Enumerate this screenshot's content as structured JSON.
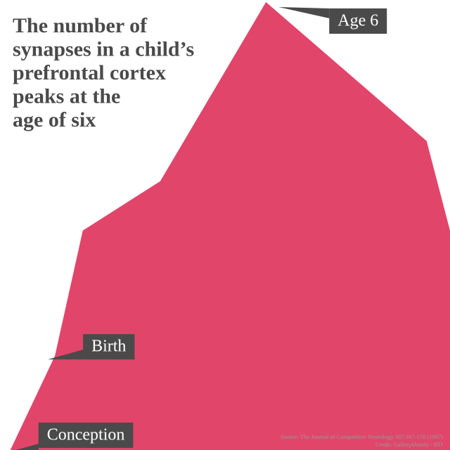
{
  "chart_data": {
    "type": "area",
    "title": [
      "The number of",
      "synapses in a child’s",
      "prefrontal cortex",
      "peaks at the",
      "age of six"
    ],
    "x": [
      2.3,
      12.2,
      18.4,
      35.6,
      59.1,
      94.8,
      100
    ],
    "values": [
      0,
      21,
      49,
      60,
      100,
      69,
      49
    ],
    "point_labels": [
      "Conception",
      "Birth",
      null,
      null,
      "Age 6",
      null,
      null
    ],
    "xlim": [
      0,
      100
    ],
    "ylim": [
      0,
      100
    ],
    "color": "#e2456a",
    "source": "Source: The Journal of Comparitive Neurology 387:167-178 (1997)",
    "credit": "Credit: Gallerykhately / RTI"
  }
}
